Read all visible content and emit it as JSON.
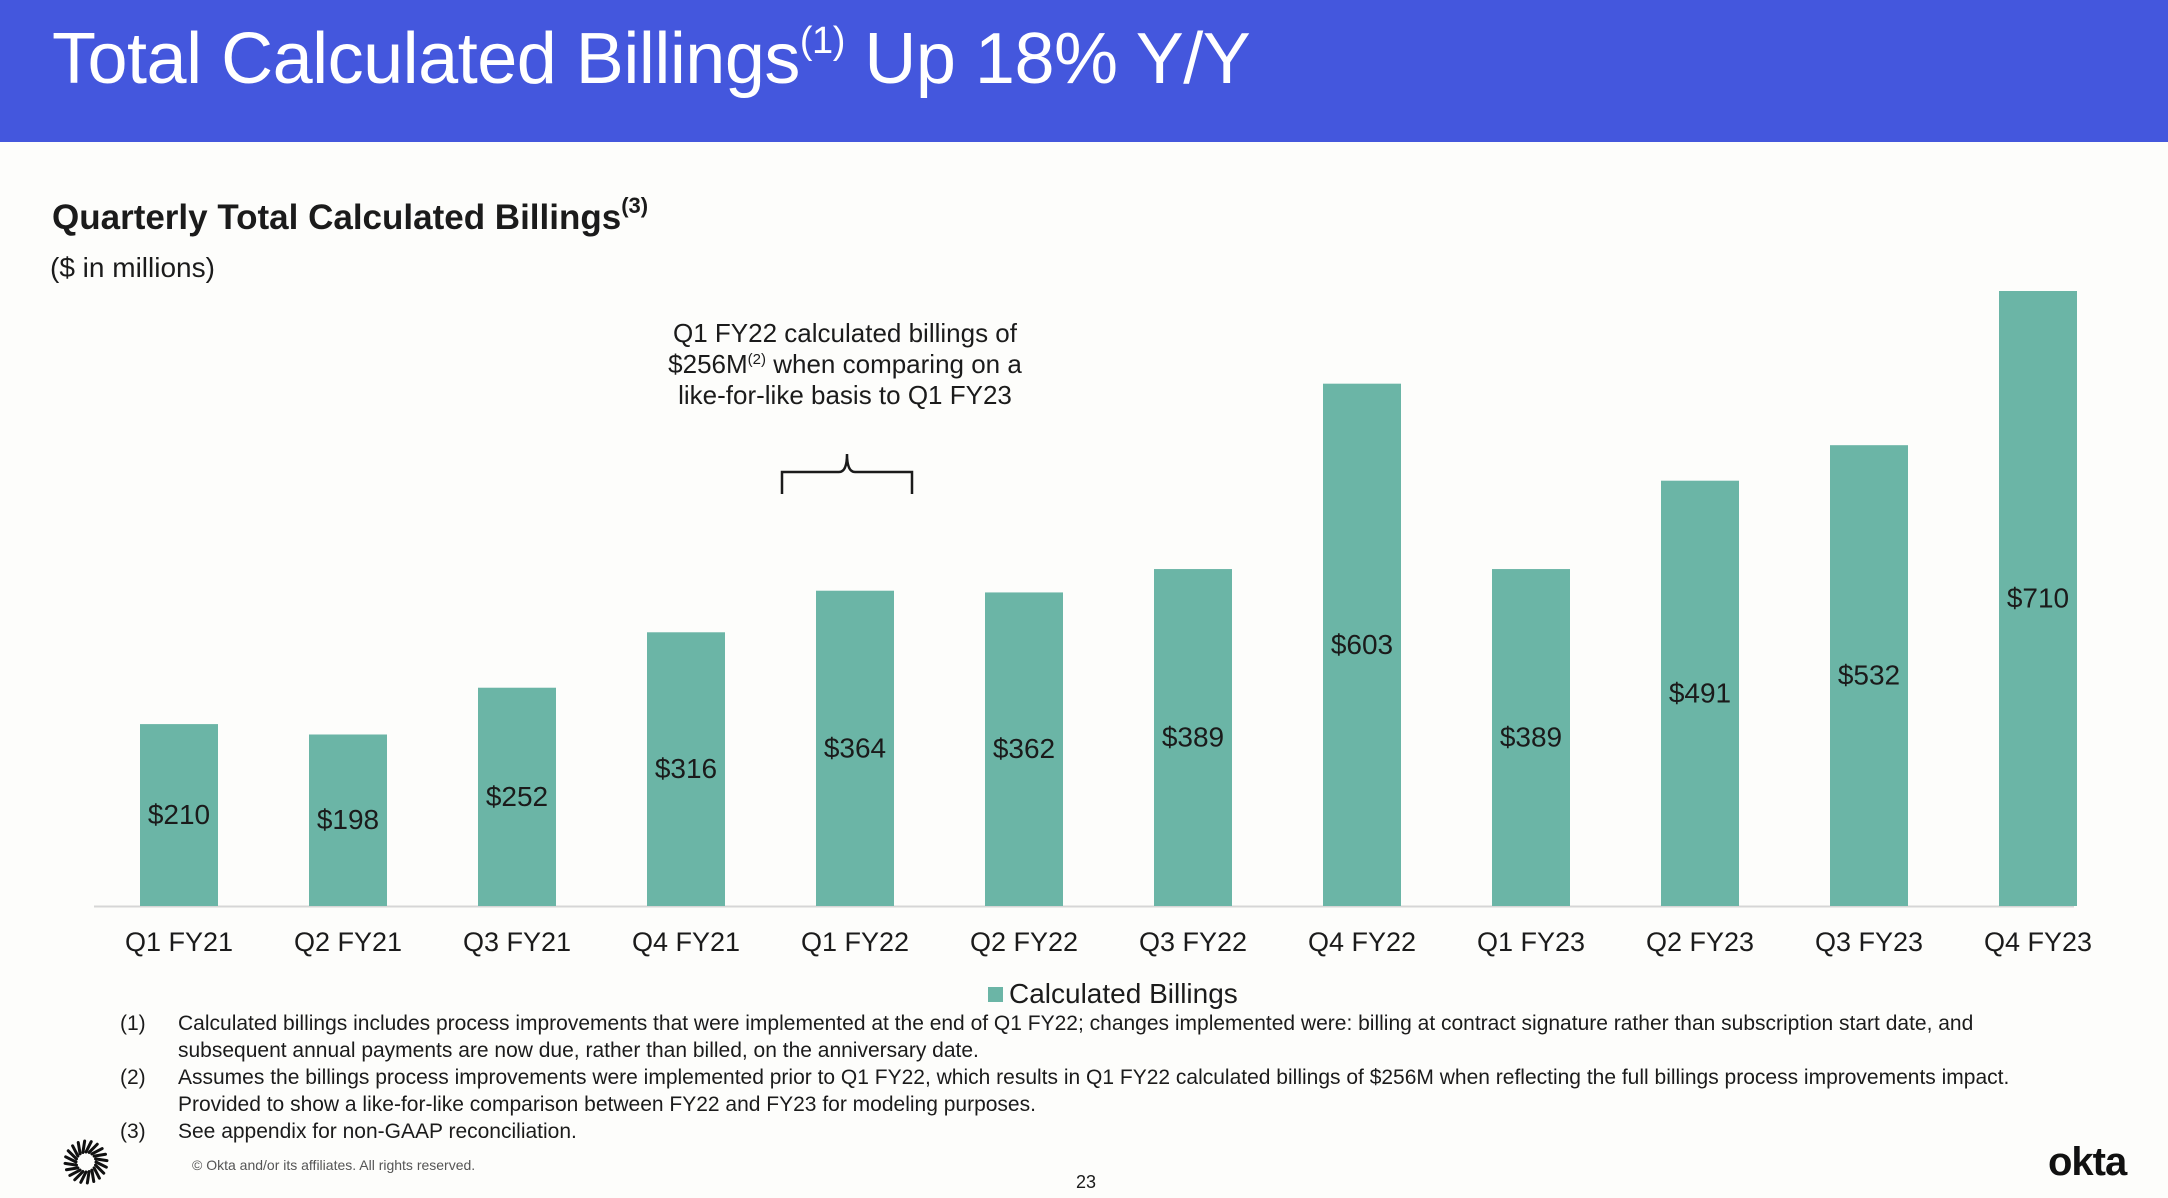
{
  "header": {
    "title_pre": "Total Calculated Billings",
    "title_sup": "(1)",
    "title_post": " Up 18% Y/Y",
    "band_color": "#4457dd"
  },
  "annotation": {
    "line1": "Q1 FY22 calculated billings of",
    "line2_pre": "$256M",
    "line2_sup": "(2)",
    "line2_post": " when comparing on a",
    "line3": "like-for-like basis to Q1 FY23"
  },
  "chart_data": {
    "type": "bar",
    "title": "Quarterly Total Calculated Billings",
    "title_sup": "(3)",
    "subtitle": "($ in millions)",
    "categories": [
      "Q1 FY21",
      "Q2 FY21",
      "Q3 FY21",
      "Q4 FY21",
      "Q1 FY22",
      "Q2 FY22",
      "Q3 FY22",
      "Q4 FY22",
      "Q1 FY23",
      "Q2 FY23",
      "Q3 FY23",
      "Q4 FY23"
    ],
    "series": [
      {
        "name": "Calculated Billings",
        "color": "#6bb5a6",
        "values": [
          210,
          198,
          252,
          316,
          364,
          362,
          389,
          603,
          389,
          491,
          532,
          710
        ],
        "labels": [
          "$210",
          "$198",
          "$252",
          "$316",
          "$364",
          "$362",
          "$389",
          "$603",
          "$389",
          "$491",
          "$532",
          "$710"
        ]
      }
    ],
    "ylim": [
      0,
      710
    ],
    "grid": false,
    "legend": "bottom-center",
    "bracket_category": "Q1 FY22"
  },
  "footnotes": [
    {
      "num": "(1)",
      "text": "Calculated billings includes process improvements that were implemented at the end of Q1 FY22; changes implemented were: billing at contract signature rather than subscription start date, and subsequent annual payments are now due, rather than billed, on the anniversary date."
    },
    {
      "num": "(2)",
      "text": "Assumes the billings process improvements were implemented prior to Q1 FY22, which results in Q1 FY22 calculated billings of $256M when reflecting the full billings process improvements impact. Provided to show a like-for-like comparison between FY22 and FY23 for modeling purposes."
    },
    {
      "num": "(3)",
      "text": "See appendix for non-GAAP reconciliation."
    }
  ],
  "footer": {
    "copyright": "© Okta and/or its affiliates. All rights reserved.",
    "page_number": "23",
    "logo_text": "okta"
  }
}
